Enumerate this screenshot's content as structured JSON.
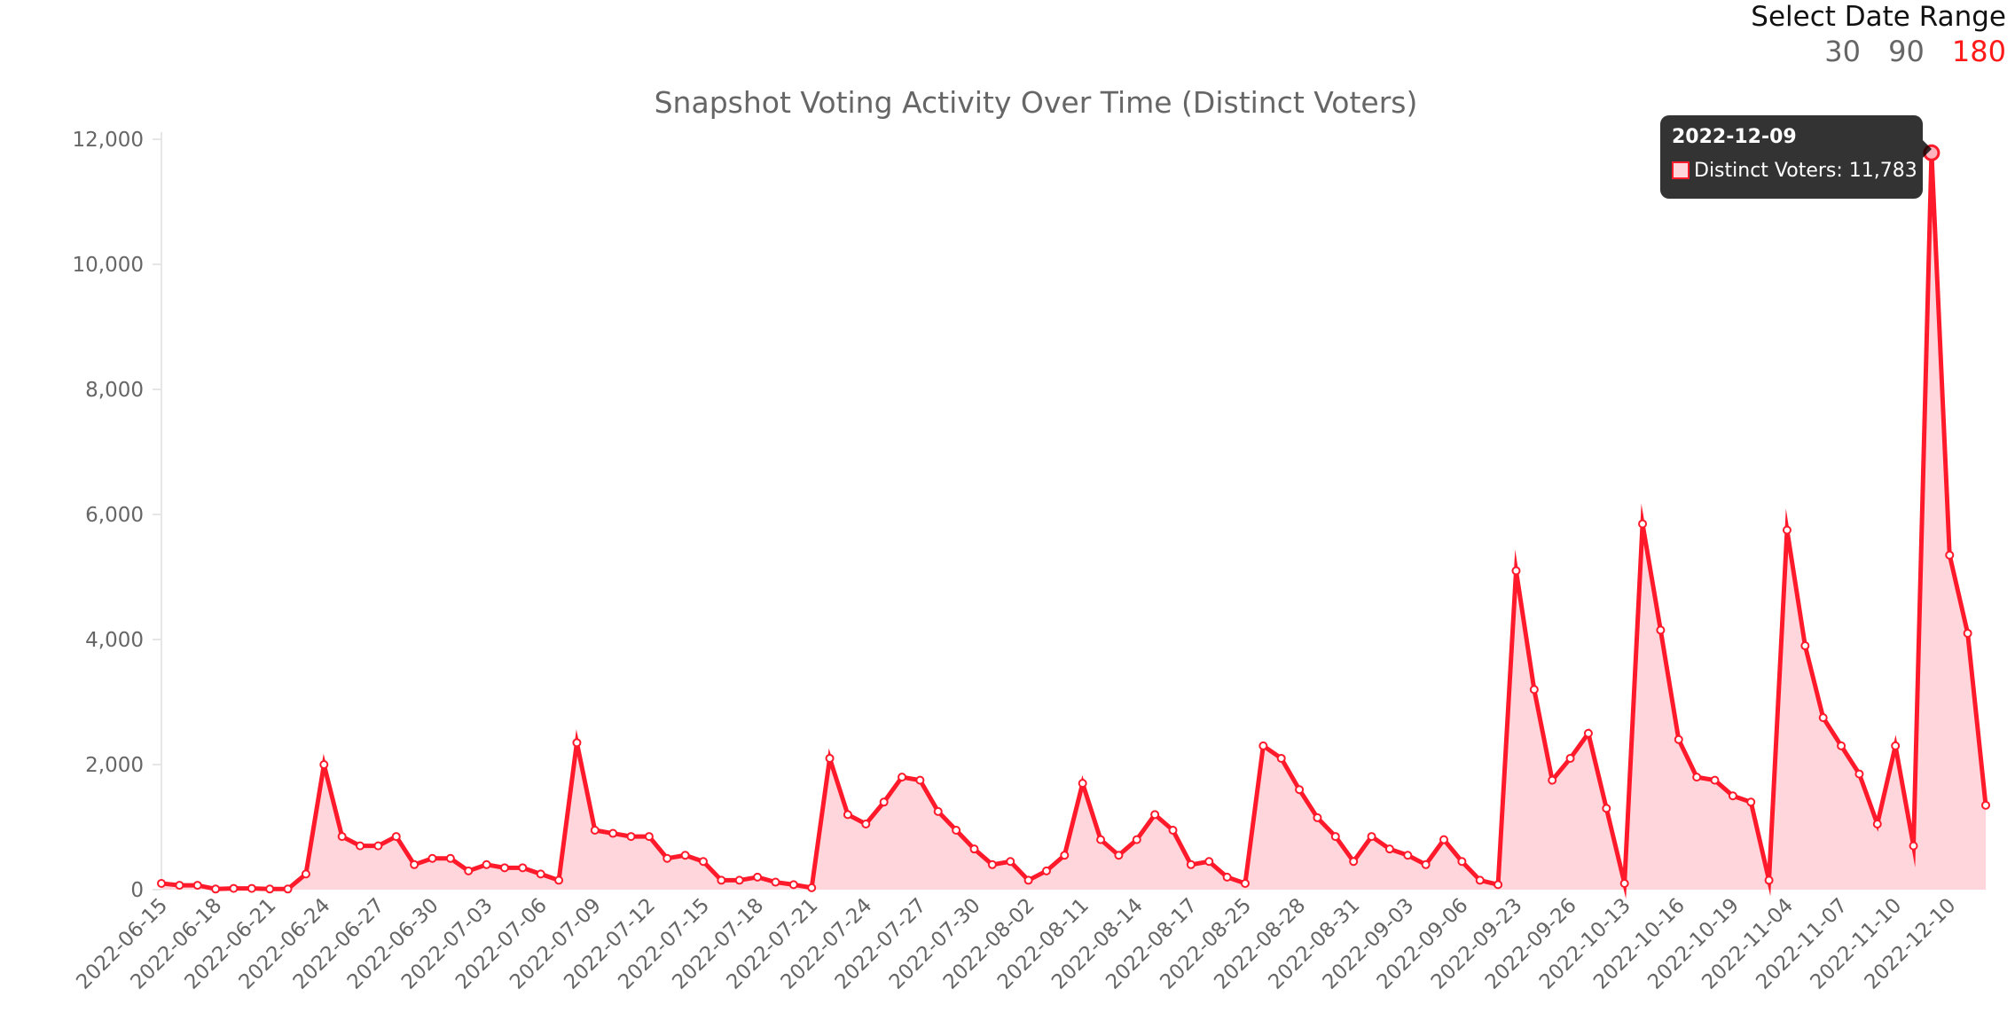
{
  "date_range": {
    "title": "Select Date Range",
    "options": [
      "30",
      "90",
      "180"
    ],
    "selected": "180",
    "active_color": "#ff1a1a"
  },
  "tooltip": {
    "title": "2022-12-09",
    "label": "Distinct Voters: 11,783"
  },
  "chart_data": {
    "type": "area",
    "title": "Snapshot Voting Activity Over Time (Distinct Voters)",
    "series": [
      {
        "name": "Distinct Voters",
        "line_color": "#ff1a2b",
        "fill_color": "#ffd6dc",
        "values": [
          100,
          70,
          70,
          10,
          20,
          20,
          10,
          10,
          250,
          2000,
          850,
          700,
          700,
          850,
          400,
          500,
          500,
          300,
          400,
          350,
          350,
          250,
          150,
          2350,
          950,
          900,
          850,
          850,
          500,
          550,
          450,
          150,
          150,
          200,
          120,
          80,
          30,
          2100,
          1200,
          1050,
          1400,
          1800,
          1750,
          1250,
          950,
          650,
          400,
          450,
          150,
          300,
          550,
          1700,
          800,
          550,
          800,
          1200,
          950,
          400,
          450,
          200,
          100,
          2300,
          2100,
          1600,
          1150,
          850,
          450,
          850,
          650,
          550,
          400,
          800,
          450,
          150,
          80,
          5100,
          3200,
          1750,
          2100,
          2500,
          1300,
          100,
          5850,
          4150,
          2400,
          1800,
          1750,
          1500,
          1400,
          150,
          5750,
          3900,
          2750,
          2300,
          1850,
          1050,
          2300,
          700,
          11783,
          5350,
          4100,
          1350
        ]
      }
    ],
    "x_tick_labels": [
      "2022-06-15",
      "2022-06-18",
      "2022-06-21",
      "2022-06-24",
      "2022-06-27",
      "2022-06-30",
      "2022-07-03",
      "2022-07-06",
      "2022-07-09",
      "2022-07-12",
      "2022-07-15",
      "2022-07-18",
      "2022-07-21",
      "2022-07-24",
      "2022-07-27",
      "2022-07-30",
      "2022-08-02",
      "2022-08-11",
      "2022-08-14",
      "2022-08-17",
      "2022-08-25",
      "2022-08-28",
      "2022-08-31",
      "2022-09-03",
      "2022-09-06",
      "2022-09-23",
      "2022-09-26",
      "2022-10-13",
      "2022-10-16",
      "2022-10-19",
      "2022-11-04",
      "2022-11-07",
      "2022-11-10",
      "2022-12-10"
    ],
    "y_ticks": [
      0,
      2000,
      4000,
      6000,
      8000,
      10000,
      12000
    ],
    "y_tick_labels": [
      "0",
      "2,000",
      "4,000",
      "6,000",
      "8,000",
      "10,000",
      "12,000"
    ],
    "ylim": [
      0,
      12000
    ],
    "grid": false,
    "highlighted_point": {
      "x": "2022-12-09",
      "y": 11783
    }
  }
}
